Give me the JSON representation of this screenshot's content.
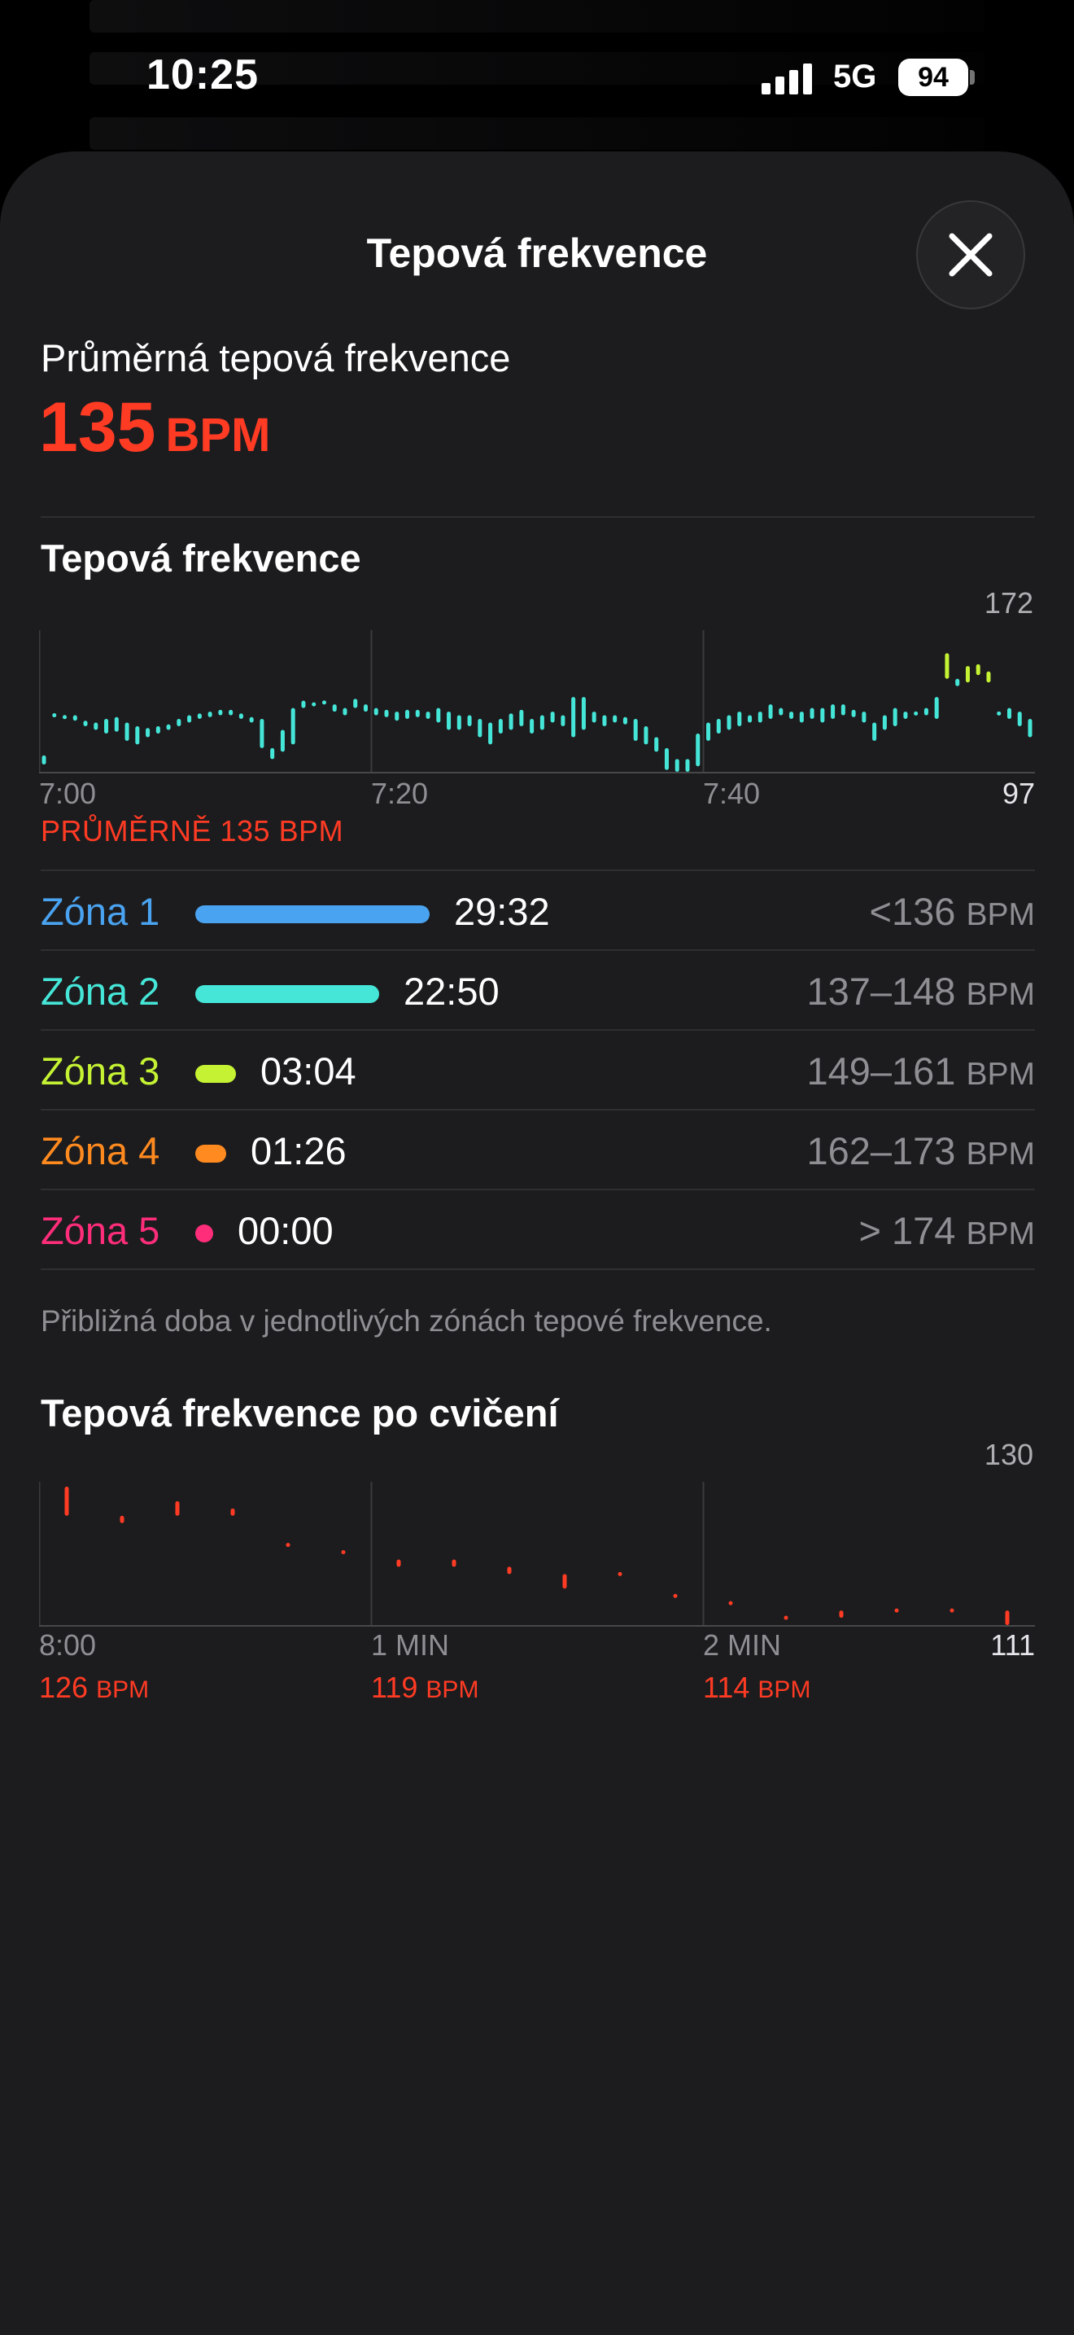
{
  "status_bar": {
    "time": "10:25",
    "network": "5G",
    "battery": "94"
  },
  "sheet": {
    "title": "Tepová frekvence",
    "close_icon": "xmark-icon"
  },
  "average": {
    "label": "Průměrná tepová frekvence",
    "value": "135",
    "unit": "BPM"
  },
  "hr_chart": {
    "section_title": "Tepová frekvence",
    "y_max_label": "172",
    "y_min_label": "97",
    "x_labels": [
      "7:00",
      "7:20",
      "7:40"
    ],
    "average_text": "PRŮMĚRNĚ 135 BPM"
  },
  "zones": [
    {
      "name": "Zóna 1",
      "time": "29:32",
      "range": "<136",
      "unit": "BPM",
      "color": "#4aa3f0"
    },
    {
      "name": "Zóna 2",
      "time": "22:50",
      "range": "137–148",
      "unit": "BPM",
      "color": "#45e6d8"
    },
    {
      "name": "Zóna 3",
      "time": "03:04",
      "range": "149–161",
      "unit": "BPM",
      "color": "#c5f233"
    },
    {
      "name": "Zóna 4",
      "time": "01:26",
      "range": "162–173",
      "unit": "BPM",
      "color": "#ff8a1f"
    },
    {
      "name": "Zóna 5",
      "time": "00:00",
      "range": "> 174",
      "unit": "BPM",
      "color": "#ff2d7a"
    }
  ],
  "zones_footnote": "Přibližná doba v jednotlivých zónách tepové frekvence.",
  "recovery": {
    "section_title": "Tepová frekvence po cvičení",
    "y_max_label": "130",
    "y_min_label": "111",
    "columns": [
      {
        "time": "8:00",
        "bpm": "126",
        "unit": "BPM"
      },
      {
        "time": "1 MIN",
        "bpm": "119",
        "unit": "BPM"
      },
      {
        "time": "2 MIN",
        "bpm": "114",
        "unit": "BPM"
      }
    ]
  },
  "chart_data": [
    {
      "type": "line",
      "title": "Tepová frekvence",
      "x": [
        "7:00",
        "7:20",
        "7:40"
      ],
      "ylim": [
        97,
        172
      ],
      "series": [
        {
          "values": [
            [
              101,
              106
            ],
            [
              127,
              129
            ],
            [
              126,
              128
            ],
            [
              125,
              128
            ],
            [
              122,
              125
            ],
            [
              120,
              124
            ],
            [
              118,
              126
            ],
            [
              119,
              127
            ],
            [
              114,
              124
            ],
            [
              112,
              122
            ],
            [
              116,
              121
            ],
            [
              118,
              122
            ],
            [
              120,
              123
            ],
            [
              122,
              126
            ],
            [
              124,
              128
            ],
            [
              126,
              129
            ],
            [
              127,
              130
            ],
            [
              128,
              131
            ],
            [
              128,
              131
            ],
            [
              126,
              129
            ],
            [
              124,
              127
            ],
            [
              110,
              126
            ],
            [
              104,
              110
            ],
            [
              108,
              120
            ],
            [
              112,
              132
            ],
            [
              132,
              136
            ],
            [
              133,
              135
            ],
            [
              134,
              136
            ],
            [
              130,
              134
            ],
            [
              128,
              132
            ],
            [
              132,
              137
            ],
            [
              130,
              134
            ],
            [
              128,
              132
            ],
            [
              127,
              131
            ],
            [
              125,
              130
            ],
            [
              126,
              131
            ],
            [
              127,
              131
            ],
            [
              126,
              130
            ],
            [
              124,
              132
            ],
            [
              120,
              130
            ],
            [
              120,
              128
            ],
            [
              122,
              128
            ],
            [
              116,
              126
            ],
            [
              112,
              124
            ],
            [
              118,
              126
            ],
            [
              120,
              129
            ],
            [
              122,
              131
            ],
            [
              118,
              126
            ],
            [
              120,
              128
            ],
            [
              124,
              130
            ],
            [
              122,
              128
            ],
            [
              116,
              138
            ],
            [
              120,
              138
            ],
            [
              124,
              130
            ],
            [
              122,
              128
            ],
            [
              124,
              128
            ],
            [
              123,
              127
            ],
            [
              114,
              126
            ],
            [
              112,
              122
            ],
            [
              108,
              116
            ],
            [
              98,
              110
            ],
            [
              97,
              104
            ],
            [
              97,
              104
            ],
            [
              100,
              118
            ],
            [
              114,
              124
            ],
            [
              118,
              126
            ],
            [
              120,
              128
            ],
            [
              122,
              130
            ],
            [
              124,
              128
            ],
            [
              124,
              130
            ],
            [
              126,
              134
            ],
            [
              128,
              132
            ],
            [
              126,
              130
            ],
            [
              124,
              130
            ],
            [
              126,
              132
            ],
            [
              124,
              132
            ],
            [
              126,
              134
            ],
            [
              128,
              134
            ],
            [
              127,
              131
            ],
            [
              124,
              130
            ],
            [
              114,
              124
            ],
            [
              120,
              128
            ],
            [
              122,
              132
            ],
            [
              126,
              130
            ],
            [
              128,
              130
            ],
            [
              128,
              132
            ],
            [
              126,
              138
            ],
            [
              148,
              162
            ],
            [
              144,
              148
            ],
            [
              146,
              155
            ],
            [
              150,
              156
            ],
            [
              146,
              152
            ],
            [
              128,
              130
            ],
            [
              126,
              132
            ],
            [
              122,
              130
            ],
            [
              116,
              126
            ]
          ]
        }
      ]
    },
    {
      "type": "line",
      "title": "Tepová frekvence po cvičení",
      "x": [
        "8:00",
        "1 MIN",
        "2 MIN"
      ],
      "ylim": [
        111,
        130
      ],
      "series": [
        {
          "values": [
            [
              126,
              130
            ],
            [
              125,
              126
            ],
            [
              126,
              128
            ],
            [
              126,
              127
            ],
            [
              122,
              122
            ],
            [
              121,
              121
            ],
            [
              119,
              120
            ],
            [
              119,
              120
            ],
            [
              118,
              119
            ],
            [
              116,
              118
            ],
            [
              118,
              118
            ],
            [
              115,
              115
            ],
            [
              114,
              114
            ],
            [
              112,
              112
            ],
            [
              112,
              113
            ],
            [
              113,
              113
            ],
            [
              113,
              113
            ],
            [
              111,
              113
            ]
          ]
        }
      ]
    }
  ]
}
